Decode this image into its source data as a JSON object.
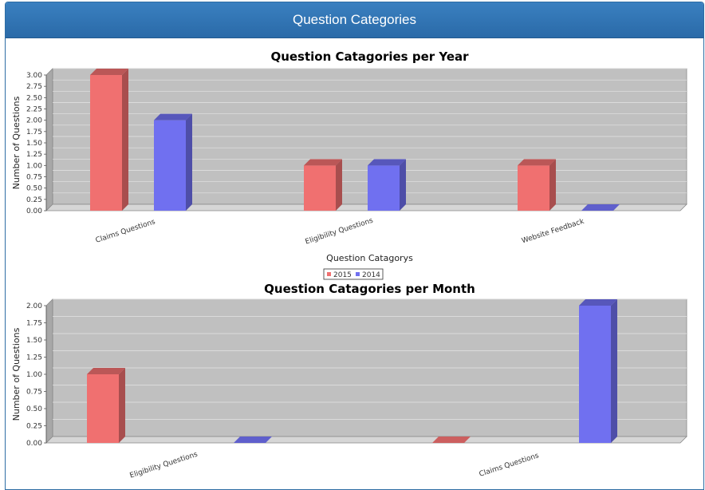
{
  "panel": {
    "title": "Question Categories"
  },
  "colors": {
    "series_2015": "#f07070",
    "series_2014": "#7070f0",
    "plot_bg": "#c0c0c0",
    "header_bg": "#3070b0"
  },
  "chart_data": [
    {
      "type": "bar",
      "title": "Question Catagories per Year",
      "xlabel": "Question Catagorys",
      "ylabel": "Number of Questions",
      "categories": [
        "Claims Questions",
        "Eligibility Questions",
        "Website Feedback"
      ],
      "series": [
        {
          "name": "2015",
          "values": [
            3,
            1,
            1
          ]
        },
        {
          "name": "2014",
          "values": [
            2,
            1,
            0
          ]
        }
      ],
      "ylim": [
        0,
        3
      ],
      "yticks": [
        "0.00",
        "0.25",
        "0.50",
        "0.75",
        "1.00",
        "1.25",
        "1.50",
        "1.75",
        "2.00",
        "2.25",
        "2.50",
        "2.75",
        "3.00"
      ],
      "legend": [
        "2015",
        "2014"
      ],
      "legend_position": "bottom",
      "grid": true
    },
    {
      "type": "bar",
      "title": "Question Catagories per Month",
      "xlabel": "",
      "ylabel": "Number of Questions",
      "categories": [
        "Eligibility Questions",
        "Claims Questions"
      ],
      "series": [
        {
          "name": "2015",
          "values": [
            1,
            0
          ]
        },
        {
          "name": "2014",
          "values": [
            0,
            2
          ]
        }
      ],
      "ylim": [
        0,
        2
      ],
      "yticks": [
        "0.00",
        "0.25",
        "0.50",
        "0.75",
        "1.00",
        "1.25",
        "1.50",
        "1.75",
        "2.00"
      ],
      "grid": true
    }
  ]
}
